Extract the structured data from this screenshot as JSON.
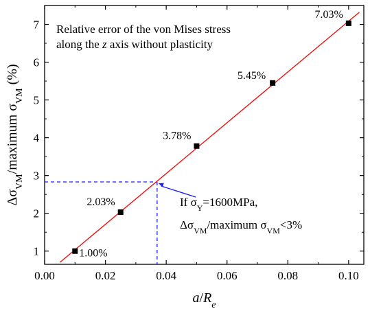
{
  "chart_data": {
    "type": "scatter",
    "title": "",
    "xlabel": {
      "italic": "a",
      "slash": "/",
      "base": "R",
      "sub": "e"
    },
    "ylabel": {
      "p1": "Δσ",
      "p1_sub": "VM",
      "p2": "/maximum σ",
      "p2_sub": "VM",
      "p3": " (%)"
    },
    "xlim": [
      0.0,
      0.105
    ],
    "ylim": [
      0.65,
      7.5
    ],
    "x_ticks": [
      0.0,
      0.02,
      0.04,
      0.06,
      0.08,
      0.1
    ],
    "x_tick_labels": [
      "0.00",
      "0.02",
      "0.04",
      "0.06",
      "0.08",
      "0.10"
    ],
    "y_ticks": [
      1,
      2,
      3,
      4,
      5,
      6,
      7
    ],
    "y_tick_labels": [
      "1",
      "2",
      "3",
      "4",
      "5",
      "6",
      "7"
    ],
    "grid": false,
    "series": [
      {
        "marker": "square",
        "color": "#000000",
        "x": [
          0.01,
          0.025,
          0.05,
          0.075,
          0.1
        ],
        "y": [
          1.0,
          2.03,
          3.78,
          5.45,
          7.03
        ],
        "labels": [
          "1.00%",
          "2.03%",
          "3.78%",
          "5.45%",
          "7.03%"
        ]
      }
    ],
    "fit_line": {
      "color": "#e8140f",
      "x": [
        0.005,
        0.1035
      ],
      "y": [
        0.7,
        7.32
      ]
    },
    "reference": {
      "x": 0.037,
      "y": 2.83,
      "color": "#1a1aff",
      "style": "dashed"
    },
    "title_annotation": [
      {
        "pre": "Relative error of the von Mises stress",
        "italic": "",
        "post": ""
      },
      {
        "pre": "along the ",
        "italic": "z",
        "post": " axis without plasticity"
      }
    ],
    "arrow_annotation": {
      "line1": {
        "a": "If σ",
        "a_sub": "Y",
        "b": "=1600MPa,"
      },
      "line2": {
        "a": "Δσ",
        "a_sub": "VM",
        "b": "/maximum σ",
        "b_sub": "VM",
        "c": "<3%"
      },
      "arrow_color": "#1a1aff"
    }
  }
}
